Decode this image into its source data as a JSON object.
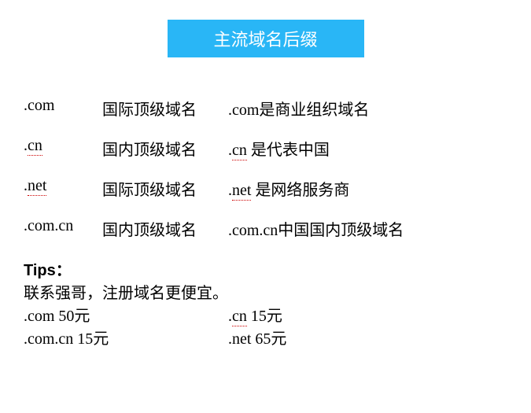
{
  "title": "主流域名后缀",
  "title_bg_color": "#29b6f6",
  "title_text_color": "#ffffff",
  "body_bg_color": "#ffffff",
  "text_color": "#000000",
  "underline_color": "#cc0000",
  "font_size_body": 20,
  "font_size_title": 22,
  "rows": [
    {
      "suffix": ".com",
      "type": "国际顶级域名",
      "desc": ".com是商业组织域名",
      "underline_suffix": false,
      "underline_desc_prefix": false
    },
    {
      "suffix": ".cn",
      "type": "国内顶级域名",
      "desc_prefix": "cn",
      "desc_rest": " 是代表中国",
      "underline_suffix": true,
      "underline_desc_prefix": true
    },
    {
      "suffix": ".net",
      "type": "国际顶级域名",
      "desc_prefix": "net",
      "desc_rest": " 是网络服务商",
      "underline_suffix": true,
      "underline_desc_prefix": true
    },
    {
      "suffix": ".com.cn",
      "type": "国内顶级域名",
      "desc": ".com.cn中国国内顶级域名",
      "underline_suffix": false,
      "underline_desc_prefix": false
    }
  ],
  "tips": {
    "label": "Tips：",
    "line1": "联系强哥，注册域名更便宜。",
    "prices": [
      {
        "left": ".com 50元",
        "right_prefix": "cn",
        "right_rest": "  15元",
        "right_underline": true
      },
      {
        "left": ".com.cn 15元",
        "right": ".net  65元",
        "right_underline": false
      }
    ]
  }
}
